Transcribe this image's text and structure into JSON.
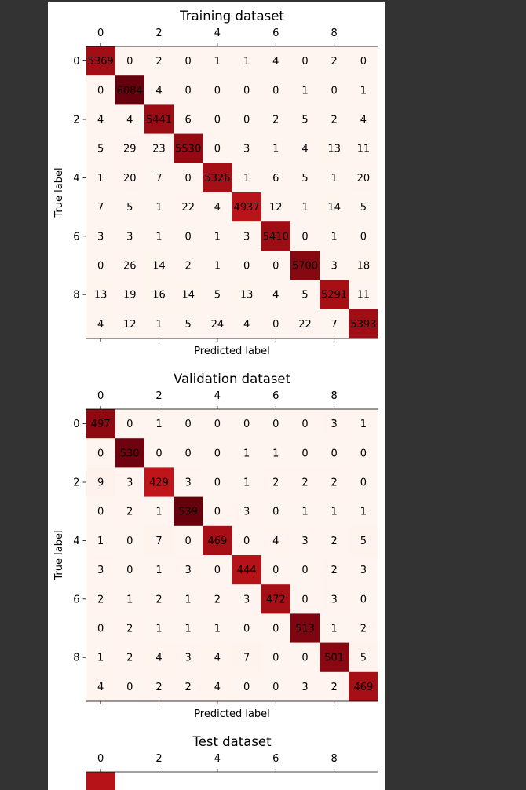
{
  "chart_data": [
    {
      "type": "heatmap",
      "title": "Training dataset",
      "xlabel": "Predicted label",
      "ylabel": "True label",
      "x_ticks": [
        "0",
        "2",
        "4",
        "6",
        "8"
      ],
      "y_ticks": [
        "0",
        "2",
        "4",
        "6",
        "8"
      ],
      "colormap": "Reds",
      "matrix": [
        [
          5369,
          0,
          2,
          0,
          1,
          1,
          4,
          0,
          2,
          0
        ],
        [
          0,
          6084,
          4,
          0,
          0,
          0,
          0,
          1,
          0,
          1
        ],
        [
          4,
          4,
          5441,
          6,
          0,
          0,
          2,
          5,
          2,
          4
        ],
        [
          5,
          29,
          23,
          5530,
          0,
          3,
          1,
          4,
          13,
          11
        ],
        [
          1,
          20,
          7,
          0,
          5326,
          1,
          6,
          5,
          1,
          20
        ],
        [
          7,
          5,
          1,
          22,
          4,
          4937,
          12,
          1,
          14,
          5
        ],
        [
          3,
          3,
          1,
          0,
          1,
          3,
          5410,
          0,
          1,
          0
        ],
        [
          0,
          26,
          14,
          2,
          1,
          0,
          0,
          5700,
          3,
          18
        ],
        [
          13,
          19,
          16,
          14,
          5,
          13,
          4,
          5,
          5291,
          11
        ],
        [
          4,
          12,
          1,
          5,
          24,
          4,
          0,
          22,
          7,
          5393
        ]
      ]
    },
    {
      "type": "heatmap",
      "title": "Validation dataset",
      "xlabel": "Predicted label",
      "ylabel": "True label",
      "x_ticks": [
        "0",
        "2",
        "4",
        "6",
        "8"
      ],
      "y_ticks": [
        "0",
        "2",
        "4",
        "6",
        "8"
      ],
      "colormap": "Reds",
      "matrix": [
        [
          497,
          0,
          1,
          0,
          0,
          0,
          0,
          0,
          3,
          1
        ],
        [
          0,
          530,
          0,
          0,
          0,
          1,
          1,
          0,
          0,
          0
        ],
        [
          9,
          3,
          429,
          3,
          0,
          1,
          2,
          2,
          2,
          0
        ],
        [
          0,
          2,
          1,
          539,
          0,
          3,
          0,
          1,
          1,
          1
        ],
        [
          1,
          0,
          7,
          0,
          469,
          0,
          4,
          3,
          2,
          5
        ],
        [
          3,
          0,
          1,
          3,
          0,
          444,
          0,
          0,
          2,
          3
        ],
        [
          2,
          1,
          2,
          1,
          2,
          3,
          472,
          0,
          3,
          0
        ],
        [
          0,
          2,
          1,
          1,
          1,
          0,
          0,
          513,
          1,
          2
        ],
        [
          1,
          2,
          4,
          3,
          4,
          7,
          0,
          0,
          501,
          5
        ],
        [
          4,
          0,
          2,
          2,
          4,
          0,
          0,
          3,
          2,
          469
        ]
      ]
    },
    {
      "type": "heatmap",
      "title": "Test dataset",
      "x_ticks": [
        "0",
        "2",
        "4",
        "6",
        "8"
      ],
      "colormap": "Reds",
      "matrix": [],
      "partially_visible": true
    }
  ]
}
